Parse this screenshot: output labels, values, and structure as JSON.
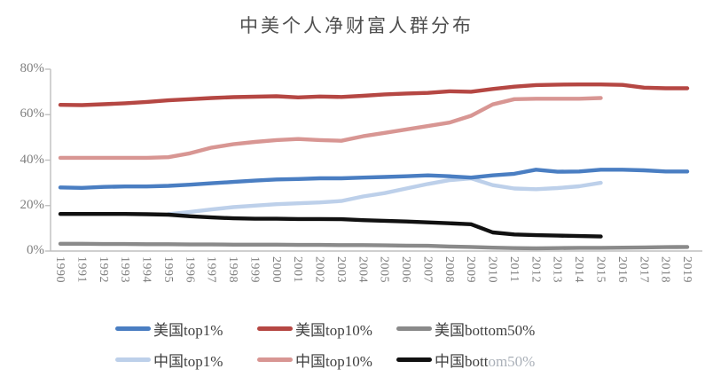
{
  "title": "中美个人净财富人群分布",
  "chart_data": {
    "type": "line",
    "title": "中美个人净财富人群分布",
    "xlabel": "",
    "ylabel": "",
    "ylim": [
      0,
      80
    ],
    "grid": false,
    "legend_position": "bottom",
    "x": [
      1990,
      1991,
      1992,
      1993,
      1994,
      1995,
      1996,
      1997,
      1998,
      1999,
      2000,
      2001,
      2002,
      2003,
      2004,
      2005,
      2006,
      2007,
      2008,
      2009,
      2010,
      2011,
      2012,
      2013,
      2014,
      2015,
      2016,
      2017,
      2018,
      2019
    ],
    "y_tick_labels": [
      "0%",
      "20%",
      "40%",
      "60%",
      "80%"
    ],
    "y_ticks_percent": [
      0,
      20,
      40,
      60,
      80
    ],
    "series": [
      {
        "name": "中国top10%",
        "color": "#d89693",
        "start_year": 1990,
        "values": [
          41,
          41,
          41,
          41,
          41,
          41.3,
          43,
          45.5,
          47,
          48,
          48.8,
          49.3,
          48.8,
          48.5,
          50.5,
          52,
          53.5,
          55,
          56.5,
          59.5,
          64.5,
          66.8,
          67,
          67,
          67,
          67.3
        ]
      },
      {
        "name": "美国top10%",
        "color": "#b54743",
        "start_year": 1990,
        "values": [
          64.3,
          64.2,
          64.6,
          65,
          65.6,
          66.3,
          66.8,
          67.3,
          67.7,
          67.9,
          68.1,
          67.6,
          68,
          67.8,
          68.3,
          68.9,
          69.3,
          69.6,
          70.3,
          70.1,
          71.3,
          72.3,
          73,
          73.2,
          73.3,
          73.3,
          73.1,
          71.9,
          71.6,
          71.6
        ]
      },
      {
        "name": "中国top1%",
        "color": "#bdd0ea",
        "start_year": 1995,
        "values": [
          16.2,
          17.2,
          18.3,
          19.3,
          20,
          20.6,
          21,
          21.4,
          22,
          24,
          25.5,
          27.5,
          29.5,
          31.2,
          32,
          29,
          27.5,
          27.2,
          27.7,
          28.5,
          30
        ]
      },
      {
        "name": "美国top1%",
        "color": "#4a7ec2",
        "start_year": 1990,
        "values": [
          28,
          27.8,
          28.2,
          28.4,
          28.4,
          28.7,
          29.2,
          29.8,
          30.4,
          31,
          31.5,
          31.7,
          32,
          32,
          32.3,
          32.6,
          32.9,
          33.3,
          32.9,
          32.3,
          33.3,
          34,
          35.8,
          34.9,
          35,
          35.8,
          35.8,
          35.5,
          35,
          35
        ]
      },
      {
        "name": "美国bottom50%",
        "color": "#8a8a8a",
        "start_year": 1990,
        "values": [
          3.2,
          3.2,
          3.1,
          3.1,
          3,
          3,
          2.9,
          2.9,
          2.8,
          2.8,
          2.8,
          2.7,
          2.7,
          2.6,
          2.6,
          2.5,
          2.4,
          2.3,
          2,
          1.8,
          1.5,
          1.3,
          1.2,
          1.3,
          1.4,
          1.4,
          1.5,
          1.6,
          1.7,
          1.8
        ]
      },
      {
        "name": "中国bottom50%",
        "color": "#111111",
        "start_year": 1990,
        "values": [
          16.3,
          16.3,
          16.3,
          16.3,
          16.2,
          16,
          15.3,
          14.8,
          14.4,
          14.2,
          14.2,
          14.1,
          14.1,
          14,
          13.6,
          13.3,
          13,
          12.6,
          12.2,
          11.8,
          8.2,
          7.3,
          7,
          6.8,
          6.6,
          6.4
        ]
      }
    ]
  },
  "legend": {
    "items": [
      {
        "label": "美国top1%",
        "suffix": "",
        "color": "#4a7ec2"
      },
      {
        "label": "美国top10%",
        "suffix": "",
        "color": "#b54743"
      },
      {
        "label": "美国bottom50%",
        "suffix": "",
        "color": "#8a8a8a"
      },
      {
        "label": "中国top1%",
        "suffix": "",
        "color": "#bdd0ea"
      },
      {
        "label": "中国top10%",
        "suffix": "",
        "color": "#d89693"
      },
      {
        "label": "中国bott",
        "suffix": "om50%",
        "color": "#111111"
      }
    ]
  }
}
